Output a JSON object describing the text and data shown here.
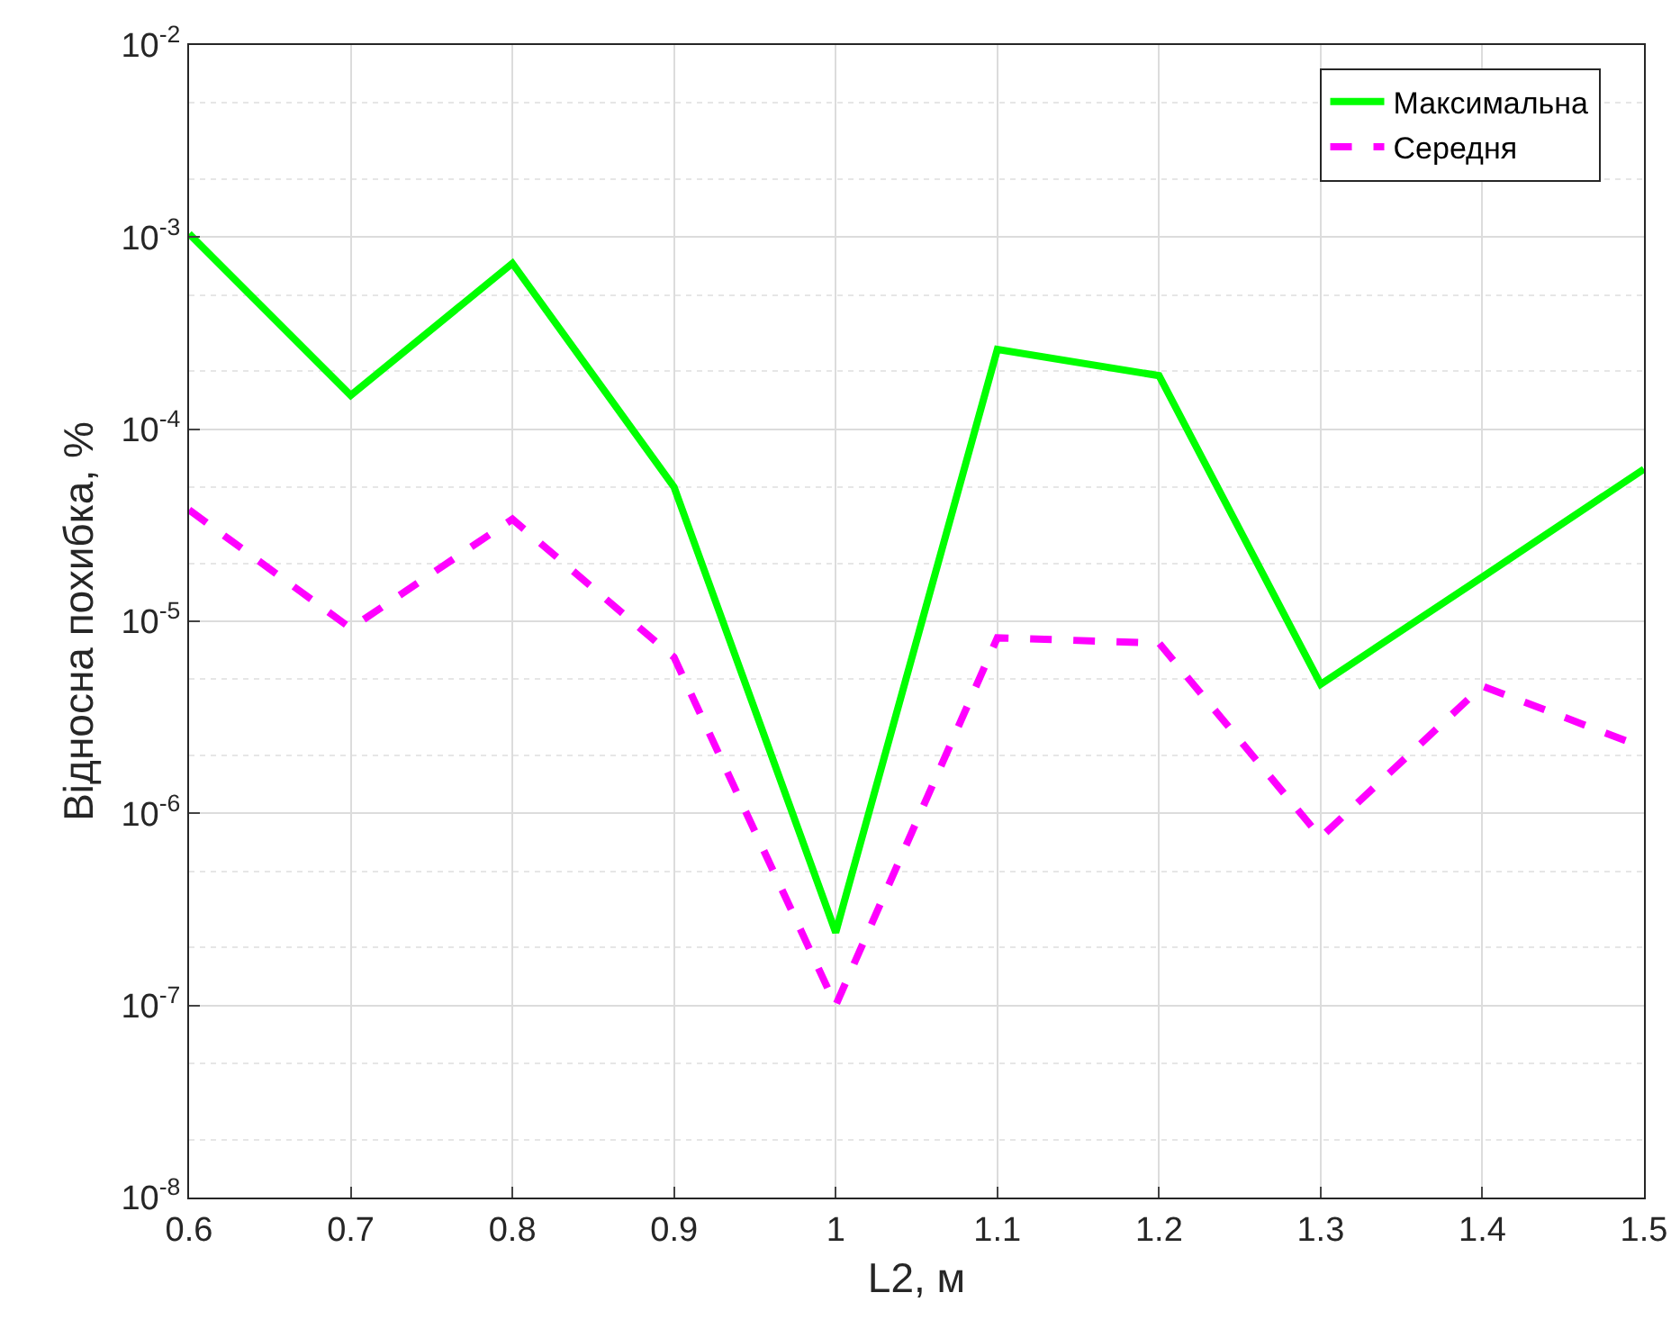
{
  "chart_data": {
    "type": "line",
    "xlabel": "L2, м",
    "ylabel": "Відносна похибка, %",
    "x": [
      0.6,
      0.7,
      0.8,
      0.9,
      1.0,
      1.1,
      1.2,
      1.3,
      1.4,
      1.5
    ],
    "series": [
      {
        "name": "Максимальна",
        "color": "#00ff00",
        "line_style": "solid",
        "values": [
          0.00104,
          0.00015,
          0.00073,
          5e-05,
          2.4e-07,
          0.00026,
          0.00019,
          4.7e-06,
          1.7e-05,
          6.2e-05
        ]
      },
      {
        "name": "Середня",
        "color": "#ff00ff",
        "line_style": "dashed",
        "values": [
          3.8e-05,
          9.2e-06,
          3.4e-05,
          6.5e-06,
          1e-07,
          8.2e-06,
          7.7e-06,
          7.5e-07,
          4.6e-06,
          2.2e-06
        ]
      }
    ],
    "xlim": [
      0.6,
      1.5
    ],
    "xticks": [
      0.6,
      0.7,
      0.8,
      0.9,
      1,
      1.1,
      1.2,
      1.3,
      1.4,
      1.5
    ],
    "ylim": [
      1e-08,
      0.01
    ],
    "yticks": [
      {
        "value": 1e-08,
        "label": "10$^{-8}$"
      },
      {
        "value": 1e-07,
        "label": "10$^{-7}$"
      },
      {
        "value": 1e-06,
        "label": "10$^{-6}$"
      },
      {
        "value": 1e-05,
        "label": "10$^{-5}$"
      },
      {
        "value": 0.0001,
        "label": "10$^{-4}$"
      },
      {
        "value": 0.001,
        "label": "10$^{-3}$"
      },
      {
        "value": 0.01,
        "label": "10$^{-2}$"
      }
    ],
    "log": true,
    "grid": true,
    "legend": "top right",
    "marker": "none"
  }
}
